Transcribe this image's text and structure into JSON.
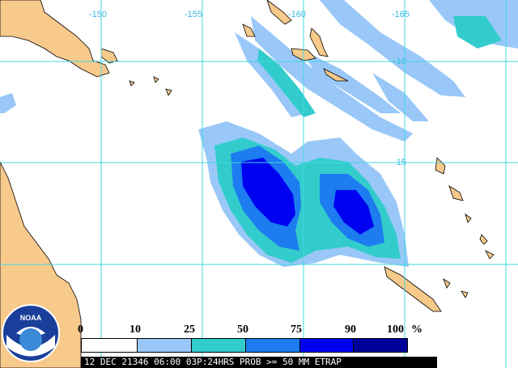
{
  "map": {
    "lon_labels": [
      "-150",
      "-155",
      "-160",
      "-165"
    ],
    "lat_labels": [
      "-10",
      "-15"
    ],
    "colors": {
      "land": "#f7c98b",
      "grid": "#40d8e0",
      "bin_0_10": "#ffffff",
      "bin_10_25": "#99c8f8",
      "bin_25_50": "#33cccc",
      "bin_50_75": "#1c7cf0",
      "bin_75_90": "#0000f0",
      "bin_90_100": "#00009a"
    }
  },
  "legend": {
    "ticks": [
      "0",
      "10",
      "25",
      "50",
      "75",
      "90",
      "100"
    ],
    "unit": "%"
  },
  "caption": "12 DEC 21346 06:00 03P:24HRS PROB >= 50 MM ETRAP",
  "logo": {
    "text": "NOAA",
    "icon": "noaa-logo-icon"
  }
}
